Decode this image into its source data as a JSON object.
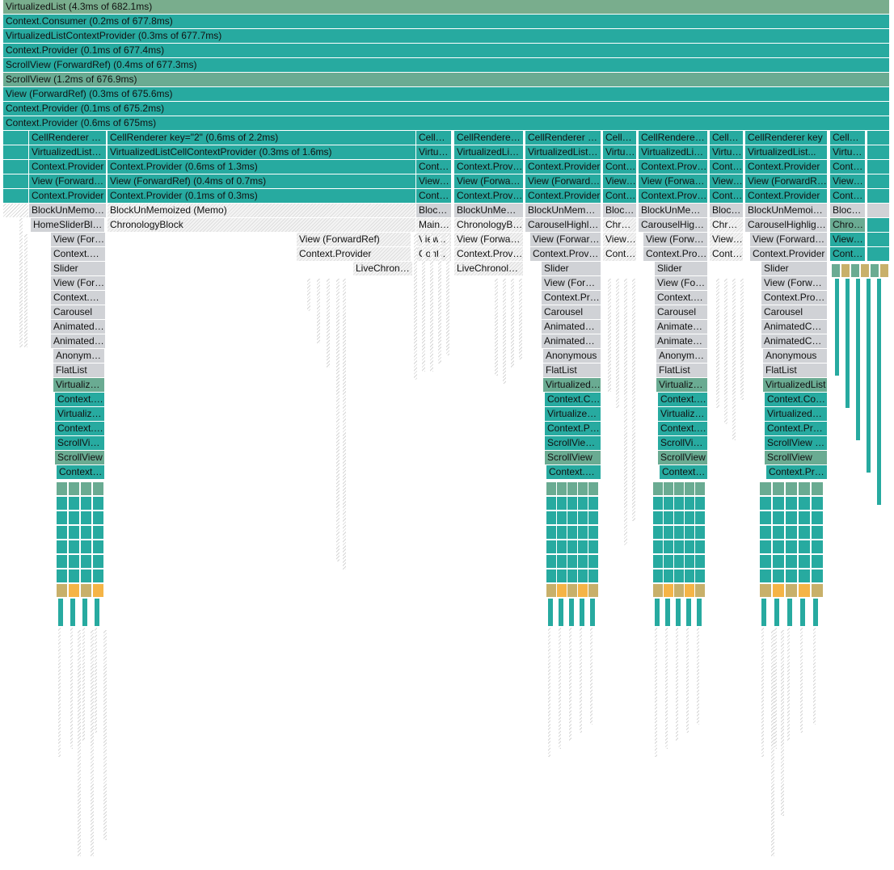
{
  "colors": {
    "teal": "#27aaa0",
    "sage": "#6aab92",
    "top": "#79ad8d",
    "grey": "#d0d2d6",
    "olive": "#c8b06a",
    "orange": "#f5b446",
    "hatch": "#d6d6d6"
  },
  "flamegraph": {
    "root_rows": [
      "VirtualizedList (4.3ms of 682.1ms)",
      "Context.Consumer (0.2ms of 677.8ms)",
      "VirtualizedListContextProvider (0.3ms of 677.7ms)",
      "Context.Provider (0.1ms of 677.4ms)",
      "ScrollView (ForwardRef) (0.4ms of 677.3ms)",
      "ScrollView (1.2ms of 676.9ms)",
      "View (ForwardRef) (0.3ms of 675.6ms)",
      "Context.Provider (0.1ms of 675.2ms)",
      "Context.Provider (0.6ms of 675ms)"
    ],
    "col_a": [
      "CellRenderer key=\"1\"",
      "VirtualizedListCellContextProvider",
      "Context.Provider",
      "View (ForwardRef)",
      "Context.Provider",
      "BlockUnMemoized",
      "HomeSliderBlock",
      "View (ForwardRef)",
      "Context.Provider",
      "Slider",
      "View (ForwardRef)",
      "Context.Provider",
      "Carousel",
      "AnimatedComponent",
      "AnimatedComponent",
      "Anonymous",
      "FlatList",
      "VirtualizedList",
      "Context.Consumer",
      "VirtualizedListContextProvider",
      "Context.Provider",
      "ScrollView (ForwardRef)",
      "ScrollView",
      "Context.Provider"
    ],
    "col_b": [
      "CellRenderer key=\"2\" (0.6ms of 2.2ms)",
      "VirtualizedListCellContextProvider (0.3ms of 1.6ms)",
      "Context.Provider (0.6ms of 1.3ms)",
      "View (ForwardRef) (0.4ms of 0.7ms)",
      "Context.Provider (0.1ms of 0.3ms)",
      "BlockUnMemoized (Memo)",
      "ChronologyBlock",
      "View (ForwardRef)",
      "Context.Provider",
      "LiveChronology"
    ],
    "col_c": [
      "CellRenderer",
      "VirtualizedList",
      "Context.Provider",
      "View (ForwardRef)",
      "Context.Provider",
      "BlockUnMemoized",
      "MainBlock",
      "View (ForwardRef)",
      "Context.Provider"
    ],
    "col_d": [
      "CellRenderer key",
      "VirtualizedListCell",
      "Context.Provider",
      "View (ForwardRef)",
      "Context.Provider",
      "BlockUnMemoized",
      "ChronologyBlock",
      "View (ForwardRef)",
      "Context.Provider",
      "LiveChronology"
    ],
    "col_e": [
      "CellRenderer key",
      "VirtualizedListCell",
      "Context.Provider",
      "View (ForwardRef)",
      "Context.Provider",
      "BlockUnMemoized",
      "CarouselHighlights",
      "View (ForwardRef)",
      "Context.Provider",
      "Slider",
      "View (ForwardRef)",
      "Context.Provider",
      "Carousel",
      "AnimatedComponent",
      "AnimatedComponent",
      "Anonymous",
      "FlatList",
      "VirtualizedList",
      "Context.Consumer",
      "VirtualizedListContextProvider",
      "Context.Provider",
      "ScrollView (ForwardRef)",
      "ScrollView",
      "Context.Provider"
    ],
    "col_f": [
      "CellRenderer",
      "VirtualizedList",
      "Context.Provider",
      "View (ForwardRef)",
      "Context.Provider",
      "BlockUnMemoized",
      "ChronologyBlock",
      "View (ForwardRef)",
      "Context.Provider"
    ],
    "col_g": [
      "CellRenderer key",
      "VirtualizedListCell",
      "Context.Provider",
      "View (ForwardRef)",
      "Context.Provider",
      "BlockUnMemoized",
      "CarouselHighlights",
      "View (ForwardRef)",
      "Context.Provider",
      "Slider",
      "View (ForwardRef)",
      "Context.Provider",
      "Carousel",
      "AnimatedComponent",
      "AnimatedComponent",
      "Anonymous",
      "FlatList",
      "VirtualizedList",
      "Context.Consumer",
      "VirtualizedListContextProvider",
      "Context.Provider",
      "ScrollView (ForwardRef)",
      "ScrollView",
      "Context.Provider"
    ],
    "col_h": [
      "CellRenderer",
      "VirtualizedList",
      "Context.Provider",
      "View (ForwardRef)",
      "Context.Provider",
      "BlockUnMemoized",
      "ChronologyBlock",
      "View (ForwardRef)",
      "Context.Provider"
    ],
    "col_i": [
      "CellRenderer key",
      "VirtualizedList...",
      "Context.Provider",
      "View (ForwardRef)",
      "Context.Provider",
      "BlockUnMemoized",
      "CarouselHighlights",
      "View (ForwardRef)",
      "Context.Provider",
      "Slider",
      "View (ForwardRef)",
      "Context.Provider",
      "Carousel",
      "AnimatedComponent",
      "AnimatedComponent",
      "Anonymous",
      "FlatList",
      "VirtualizedList",
      "Context.Consumer",
      "VirtualizedListContextProvider",
      "Context.Provider",
      "ScrollView (ForwardRef)",
      "ScrollView",
      "Context.Provider"
    ],
    "col_j": [
      "CellRenderer",
      "VirtualizedList",
      "Context.Provider",
      "View (ForwardRef)",
      "Context.Provider",
      "BlockUnMemoized",
      "ChronologyBlock",
      "View (ForwardRef)",
      "Context.Provider"
    ]
  }
}
